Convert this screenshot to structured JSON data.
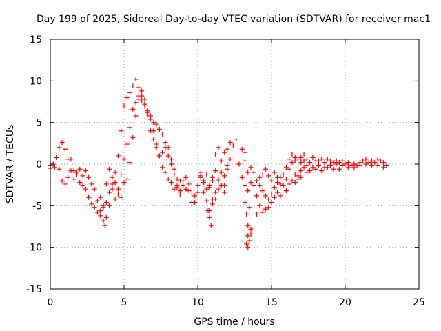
{
  "chart_data": {
    "type": "scatter",
    "title": "Day 199 of 2025, Sidereal Day-to-day VTEC variation (SDTVAR) for receiver mac1",
    "xlabel": "GPS time / hours",
    "ylabel": "SDTVAR / TECUs",
    "xlim": [
      0,
      25
    ],
    "ylim": [
      -15,
      15
    ],
    "xticks": [
      0,
      5,
      10,
      15,
      20,
      25
    ],
    "yticks": [
      -15,
      -10,
      -5,
      0,
      5,
      10,
      15
    ],
    "grid": true,
    "marker": "+",
    "color": "#ff0000",
    "series": [
      {
        "name": "SDTVAR",
        "points": [
          [
            0.0,
            -0.2
          ],
          [
            0.2,
            0.0
          ],
          [
            0.4,
            0.8
          ],
          [
            0.6,
            2.0
          ],
          [
            0.8,
            2.6
          ],
          [
            1.0,
            1.8
          ],
          [
            1.2,
            0.6
          ],
          [
            1.4,
            -0.8
          ],
          [
            1.6,
            -1.8
          ],
          [
            1.8,
            -1.0
          ],
          [
            2.0,
            -2.2
          ],
          [
            2.2,
            -2.6
          ],
          [
            2.4,
            -3.0
          ],
          [
            2.6,
            -4.0
          ],
          [
            2.8,
            -4.8
          ],
          [
            3.0,
            -5.2
          ],
          [
            3.2,
            -5.8
          ],
          [
            3.4,
            -6.2
          ],
          [
            3.6,
            -6.8
          ],
          [
            3.7,
            -7.4
          ],
          [
            3.8,
            -6.4
          ],
          [
            4.0,
            -5.0
          ],
          [
            4.2,
            -3.0
          ],
          [
            4.4,
            -1.0
          ],
          [
            4.6,
            1.0
          ],
          [
            4.8,
            4.0
          ],
          [
            5.0,
            7.0
          ],
          [
            5.2,
            8.0
          ],
          [
            5.4,
            8.6
          ],
          [
            5.6,
            9.4
          ],
          [
            5.8,
            10.2
          ],
          [
            6.0,
            9.2
          ],
          [
            6.2,
            8.2
          ],
          [
            6.4,
            7.2
          ],
          [
            6.6,
            6.0
          ],
          [
            6.8,
            5.4
          ],
          [
            7.0,
            4.0
          ],
          [
            7.2,
            2.4
          ],
          [
            7.4,
            1.0
          ],
          [
            7.6,
            -0.4
          ],
          [
            7.8,
            -1.0
          ],
          [
            8.0,
            -1.8
          ],
          [
            8.2,
            -2.2
          ],
          [
            8.4,
            -3.0
          ],
          [
            8.6,
            -2.6
          ],
          [
            8.8,
            -3.6
          ],
          [
            9.0,
            -2.0
          ],
          [
            9.2,
            -1.6
          ],
          [
            9.4,
            -3.2
          ],
          [
            9.6,
            -4.6
          ],
          [
            9.8,
            -3.8
          ],
          [
            10.0,
            -2.6
          ],
          [
            10.2,
            -1.4
          ],
          [
            10.4,
            -2.2
          ],
          [
            10.6,
            -3.0
          ],
          [
            10.8,
            -2.8
          ],
          [
            11.0,
            -4.2
          ],
          [
            11.2,
            -3.4
          ],
          [
            11.4,
            -2.0
          ]
        ]
      },
      {
        "name": "SDTVAR",
        "points": [
          [
            0.0,
            -0.5
          ],
          [
            0.3,
            -0.4
          ],
          [
            0.6,
            -0.6
          ],
          [
            0.8,
            -2.0
          ],
          [
            1.0,
            -2.4
          ],
          [
            1.2,
            -1.6
          ],
          [
            1.4,
            0.6
          ],
          [
            1.6,
            -0.8
          ],
          [
            1.8,
            -1.2
          ],
          [
            2.0,
            -0.6
          ],
          [
            2.2,
            -1.4
          ],
          [
            2.4,
            -0.8
          ],
          [
            2.6,
            -1.6
          ],
          [
            2.8,
            -2.4
          ],
          [
            3.0,
            -3.0
          ],
          [
            3.2,
            -4.4
          ],
          [
            3.4,
            -5.6
          ],
          [
            3.6,
            -5.2
          ],
          [
            3.8,
            -4.6
          ],
          [
            4.0,
            -3.4
          ],
          [
            4.2,
            -2.4
          ],
          [
            4.4,
            -2.2
          ],
          [
            4.6,
            -3.0
          ],
          [
            4.8,
            -1.2
          ],
          [
            5.0,
            0.6
          ],
          [
            5.2,
            2.4
          ],
          [
            5.4,
            4.4
          ],
          [
            5.6,
            6.6
          ],
          [
            5.8,
            7.4
          ],
          [
            6.0,
            8.2
          ],
          [
            6.2,
            7.6
          ],
          [
            6.4,
            7.0
          ],
          [
            6.6,
            6.2
          ],
          [
            6.8,
            4.0
          ],
          [
            7.0,
            3.0
          ],
          [
            7.2,
            2.0
          ],
          [
            7.4,
            1.0
          ],
          [
            7.6,
            1.4
          ],
          [
            7.8,
            2.0
          ],
          [
            8.0,
            1.0
          ],
          [
            8.2,
            0.0
          ],
          [
            8.4,
            -0.6
          ],
          [
            8.6,
            -1.8
          ],
          [
            8.8,
            -2.0
          ],
          [
            9.0,
            -2.6
          ],
          [
            9.2,
            -3.0
          ],
          [
            9.4,
            -2.4
          ],
          [
            9.6,
            -3.6
          ],
          [
            9.8,
            -4.6
          ],
          [
            10.0,
            -3.4
          ],
          [
            10.2,
            -1.0
          ],
          [
            10.4,
            -2.0
          ],
          [
            10.6,
            -1.2
          ],
          [
            10.8,
            -2.6
          ],
          [
            11.0,
            -2.0
          ],
          [
            11.2,
            -0.8
          ],
          [
            11.4,
            -1.8
          ],
          [
            11.6,
            -2.6
          ],
          [
            11.8,
            -3.4
          ]
        ]
      },
      {
        "name": "SDTVAR",
        "points": [
          [
            3.4,
            -4.0
          ],
          [
            3.6,
            -5.0
          ],
          [
            3.8,
            -2.4
          ],
          [
            4.0,
            -0.6
          ],
          [
            4.2,
            -1.6
          ],
          [
            4.4,
            -4.2
          ],
          [
            4.6,
            -3.6
          ],
          [
            4.8,
            -4.0
          ],
          [
            5.0,
            -2.2
          ],
          [
            5.2,
            -1.8
          ],
          [
            5.4,
            0.2
          ],
          [
            5.6,
            3.2
          ],
          [
            5.8,
            5.8
          ],
          [
            6.0,
            7.8
          ],
          [
            6.2,
            8.8
          ],
          [
            6.4,
            7.8
          ],
          [
            6.6,
            6.4
          ],
          [
            6.8,
            5.8
          ],
          [
            7.0,
            5.0
          ],
          [
            7.2,
            4.8
          ],
          [
            7.4,
            4.2
          ],
          [
            7.6,
            3.6
          ],
          [
            7.8,
            2.6
          ],
          [
            8.0,
            2.0
          ],
          [
            8.2,
            0.6
          ],
          [
            8.4,
            -1.2
          ],
          [
            8.6,
            -2.8
          ],
          [
            8.8,
            -3.2
          ]
        ]
      },
      {
        "name": "SDTVAR",
        "points": [
          [
            10.2,
            -1.6
          ],
          [
            10.4,
            -3.4
          ],
          [
            10.6,
            -4.4
          ],
          [
            10.8,
            -5.6
          ],
          [
            11.0,
            -4.8
          ],
          [
            11.2,
            -4.2
          ],
          [
            11.4,
            -3.0
          ],
          [
            11.0,
            -1.6
          ],
          [
            11.2,
            1.2
          ],
          [
            11.4,
            2.0
          ],
          [
            11.6,
            0.4
          ],
          [
            11.8,
            -1.4
          ],
          [
            11.6,
            -1.0
          ],
          [
            11.8,
            -2.6
          ],
          [
            12.0,
            -0.6
          ],
          [
            12.2,
            0.6
          ],
          [
            12.4,
            2.2
          ],
          [
            12.6,
            3.0
          ],
          [
            13.2,
            1.4
          ],
          [
            13.0,
            1.8
          ],
          [
            12.8,
            0.0
          ],
          [
            10.8,
            -6.4
          ],
          [
            10.9,
            -7.4
          ],
          [
            10.7,
            -5.6
          ],
          [
            12.0,
            1.8
          ],
          [
            12.2,
            2.6
          ],
          [
            12.0,
            -0.2
          ],
          [
            11.8,
            1.4
          ],
          [
            13.2,
            0.4
          ],
          [
            13.4,
            -1.0
          ],
          [
            13.0,
            -1.6
          ],
          [
            13.2,
            -2.6
          ],
          [
            13.6,
            -2.2
          ],
          [
            13.4,
            -3.2
          ]
        ]
      },
      {
        "name": "SDTVAR",
        "points": [
          [
            13.2,
            -4.6
          ],
          [
            13.3,
            -6.0
          ],
          [
            13.4,
            -7.4
          ],
          [
            13.4,
            -8.6
          ],
          [
            13.4,
            -10.0
          ],
          [
            13.5,
            -9.2
          ],
          [
            13.6,
            -8.4
          ],
          [
            13.6,
            -7.8
          ],
          [
            13.3,
            -9.6
          ],
          [
            13.5,
            -5.2
          ],
          [
            13.6,
            -0.4
          ],
          [
            13.8,
            -1.0
          ],
          [
            14.0,
            -2.0
          ],
          [
            14.2,
            -2.6
          ],
          [
            14.4,
            -3.2
          ],
          [
            14.6,
            -3.8
          ],
          [
            14.8,
            -4.2
          ],
          [
            15.0,
            -3.6
          ],
          [
            15.2,
            -2.8
          ],
          [
            15.4,
            -2.2
          ],
          [
            15.6,
            -1.6
          ],
          [
            14.6,
            -5.4
          ],
          [
            14.4,
            -5.8
          ],
          [
            14.2,
            -5.0
          ],
          [
            14.0,
            -6.0
          ],
          [
            14.8,
            -5.2
          ],
          [
            15.0,
            -4.6
          ],
          [
            15.2,
            -4.0
          ],
          [
            15.4,
            -3.4
          ],
          [
            15.6,
            -3.8
          ],
          [
            15.8,
            -2.6
          ],
          [
            16.0,
            -1.8
          ],
          [
            16.2,
            -0.6
          ],
          [
            16.4,
            0.2
          ],
          [
            16.6,
            0.4
          ],
          [
            16.8,
            0.6
          ],
          [
            17.0,
            0.2
          ],
          [
            17.2,
            0.4
          ],
          [
            17.4,
            -0.2
          ],
          [
            16.0,
            -3.2
          ],
          [
            16.2,
            -2.4
          ],
          [
            16.4,
            -2.0
          ],
          [
            16.6,
            -1.2
          ],
          [
            16.8,
            -1.8
          ],
          [
            17.0,
            -0.8
          ],
          [
            17.2,
            -0.4
          ],
          [
            14.8,
            -1.4
          ],
          [
            15.0,
            -2.0
          ],
          [
            15.2,
            -1.0
          ],
          [
            15.4,
            -1.6
          ],
          [
            15.6,
            -2.4
          ],
          [
            15.8,
            -1.2
          ],
          [
            16.0,
            -0.4
          ],
          [
            16.2,
            0.6
          ],
          [
            16.4,
            1.2
          ],
          [
            16.6,
            0.8
          ],
          [
            13.8,
            -2.6
          ],
          [
            14.0,
            -3.8
          ],
          [
            14.2,
            -1.6
          ],
          [
            14.4,
            -1.2
          ],
          [
            14.6,
            -0.6
          ]
        ]
      },
      {
        "name": "SDTVAR",
        "points": [
          [
            17.0,
            0.8
          ],
          [
            17.2,
            1.2
          ],
          [
            17.4,
            0.6
          ],
          [
            17.6,
            0.2
          ],
          [
            17.8,
            0.8
          ],
          [
            18.0,
            0.4
          ],
          [
            18.2,
            -0.2
          ],
          [
            18.4,
            0.6
          ],
          [
            18.6,
            0.2
          ],
          [
            18.8,
            -0.4
          ],
          [
            19.0,
            -0.2
          ],
          [
            19.2,
            0.2
          ],
          [
            19.4,
            0.0
          ],
          [
            19.6,
            -0.6
          ],
          [
            19.8,
            -0.2
          ],
          [
            20.0,
            0.0
          ],
          [
            20.2,
            -0.4
          ],
          [
            20.4,
            -0.2
          ],
          [
            20.6,
            0.0
          ],
          [
            20.8,
            -0.2
          ],
          [
            21.0,
            0.2
          ],
          [
            21.2,
            0.4
          ],
          [
            21.4,
            0.0
          ],
          [
            21.6,
            0.2
          ],
          [
            21.8,
            0.4
          ],
          [
            22.0,
            0.2
          ],
          [
            22.2,
            -0.2
          ],
          [
            22.4,
            0.4
          ],
          [
            22.6,
            0.2
          ],
          [
            22.8,
            -0.2
          ],
          [
            17.4,
            -1.0
          ],
          [
            17.6,
            -0.8
          ],
          [
            17.8,
            -0.4
          ],
          [
            18.0,
            -0.6
          ],
          [
            18.2,
            0.4
          ],
          [
            18.4,
            -0.8
          ],
          [
            18.6,
            -0.4
          ],
          [
            18.8,
            0.6
          ],
          [
            19.0,
            0.4
          ],
          [
            19.2,
            -0.6
          ],
          [
            19.4,
            0.4
          ],
          [
            19.6,
            0.2
          ],
          [
            19.8,
            0.4
          ],
          [
            20.2,
            0.2
          ],
          [
            20.6,
            -0.4
          ],
          [
            21.0,
            -0.2
          ],
          [
            21.4,
            0.6
          ],
          [
            21.8,
            -0.2
          ],
          [
            22.2,
            0.6
          ],
          [
            22.6,
            -0.4
          ],
          [
            16.8,
            -1.4
          ],
          [
            17.0,
            -1.6
          ],
          [
            16.6,
            -2.2
          ]
        ]
      }
    ]
  }
}
